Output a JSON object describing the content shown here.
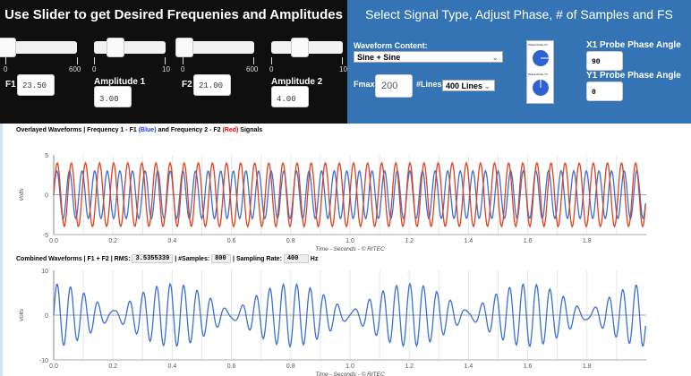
{
  "left_panel": {
    "title": "Use Slider to get Desired Frequenies and Amplitudes",
    "sliders": [
      {
        "name": "f1",
        "min": "0",
        "max": "600",
        "value_fraction": 0.04
      },
      {
        "name": "amp1",
        "min": "0",
        "max": "10",
        "value_fraction": 0.3
      },
      {
        "name": "f2",
        "min": "0",
        "max": "600",
        "value_fraction": 0.035
      },
      {
        "name": "amp2",
        "min": "0",
        "max": "10",
        "value_fraction": 0.4
      }
    ],
    "f1_label": "F1",
    "f1_value": "23.50",
    "amp1_label": "Amplitude 1",
    "amp1_value": "3.00",
    "f2_label": "F2",
    "f2_value": "21.00",
    "amp2_label": "Amplitude 2",
    "amp2_value": "4.00"
  },
  "right_panel": {
    "title": "Select Signal Type, Adjust Phase, # of Samples and FS",
    "waveform_label": "Waveform Content:",
    "waveform_value": "Sine + Sine",
    "fmax_label": "Fmax:",
    "fmax_value": "200",
    "lines_label": "#Lines:",
    "lines_value": "400 Lines",
    "dial1_label": "Phase Probe X1",
    "dial2_label": "Phase Probe Y1",
    "x1_label": "X1 Probe Phase Angle",
    "x1_value": "90",
    "y1_label": "Y1 Probe Phase Angle",
    "y1_value": "0"
  },
  "chart1_title": {
    "a": "Overlayed Waveforms | Frequency 1 - F1 ",
    "blue": "(Blue)",
    "b": " and Frequency 2 - F2 ",
    "red": "(Red)",
    "c": " Signals"
  },
  "chart2_title": {
    "a": "Combined Waveforms | F1 + F2 | RMS: ",
    "rms": "3.5355339",
    "b": " | #Samples: ",
    "samples": "800",
    "c": " | Sampling Rate: ",
    "rate": "400",
    "d": " Hz"
  },
  "colors": {
    "blue": "#3a6fd8",
    "red": "#e2401c"
  },
  "chart_data": [
    {
      "type": "line",
      "ylabel": "Volts",
      "xlabel": "Time - Seconds - © RITEC",
      "xlim": [
        0,
        2
      ],
      "ylim": [
        -5,
        5
      ],
      "yticks": [
        "5",
        "0",
        "-5"
      ],
      "xticks": [
        "0.0",
        "0.2",
        "0.4",
        "0.6",
        "0.8",
        "1.0",
        "1.2",
        "1.4",
        "1.6",
        "1.8"
      ],
      "series": [
        {
          "name": "F1",
          "freq": 23.5,
          "amp": 3,
          "color": "#3a6fd8"
        },
        {
          "name": "F2",
          "freq": 21,
          "amp": 4,
          "color": "#e2401c"
        }
      ],
      "fs": 400,
      "samples": 800
    },
    {
      "type": "line",
      "ylabel": "Volts",
      "xlabel": "Time - Seconds - © RITEC",
      "xlim": [
        0,
        2
      ],
      "ylim": [
        -10,
        10
      ],
      "yticks": [
        "10",
        "0",
        "-10"
      ],
      "xticks": [
        "0.0",
        "0.2",
        "0.4",
        "0.6",
        "0.8",
        "1.0",
        "1.2",
        "1.4",
        "1.6",
        "1.8"
      ],
      "series": [
        {
          "name": "F1 + F2",
          "components": [
            [
              23.5,
              3
            ],
            [
              21,
              4
            ]
          ],
          "color": "#3a6fd8"
        }
      ],
      "fs": 400,
      "samples": 800
    }
  ]
}
